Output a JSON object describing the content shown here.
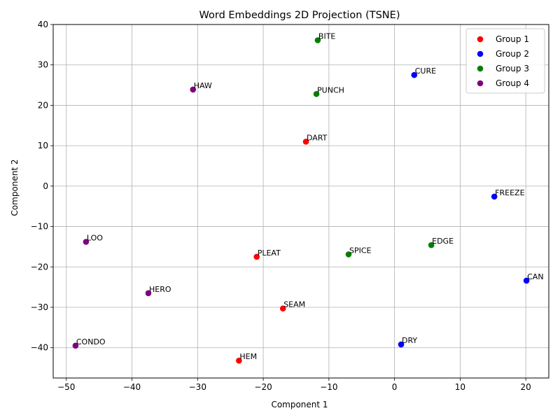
{
  "chart_data": {
    "type": "scatter",
    "title": "Word Embeddings 2D Projection (TSNE)",
    "xlabel": "Component 1",
    "ylabel": "Component 2",
    "xlim": [
      -52,
      23.5
    ],
    "ylim": [
      -47.5,
      40
    ],
    "xticks": [
      -50,
      -40,
      -30,
      -20,
      -10,
      0,
      10,
      20
    ],
    "yticks": [
      -40,
      -30,
      -20,
      -10,
      0,
      10,
      20,
      30,
      40
    ],
    "xtick_labels": [
      "−50",
      "−40",
      "−30",
      "−20",
      "−10",
      "0",
      "10",
      "20"
    ],
    "ytick_labels": [
      "−40",
      "−30",
      "−20",
      "−10",
      "0",
      "10",
      "20",
      "30",
      "40"
    ],
    "grid": true,
    "legend_position": "top-right",
    "series": [
      {
        "name": "Group 1",
        "color": "#ff0000",
        "points": [
          {
            "label": "DART",
            "x": -13.5,
            "y": 11.0
          },
          {
            "label": "PLEAT",
            "x": -21.0,
            "y": -17.5
          },
          {
            "label": "SEAM",
            "x": -17.0,
            "y": -30.3
          },
          {
            "label": "HEM",
            "x": -23.7,
            "y": -43.2
          }
        ]
      },
      {
        "name": "Group 2",
        "color": "#0000ff",
        "points": [
          {
            "label": "CURE",
            "x": 3.0,
            "y": 27.5
          },
          {
            "label": "FREEZE",
            "x": 15.2,
            "y": -2.6
          },
          {
            "label": "CAN",
            "x": 20.1,
            "y": -23.4
          },
          {
            "label": "DRY",
            "x": 1.0,
            "y": -39.2
          }
        ]
      },
      {
        "name": "Group 3",
        "color": "#008000",
        "points": [
          {
            "label": "BITE",
            "x": -11.7,
            "y": 36.1
          },
          {
            "label": "PUNCH",
            "x": -11.9,
            "y": 22.8
          },
          {
            "label": "SPICE",
            "x": -7.0,
            "y": -16.9
          },
          {
            "label": "EDGE",
            "x": 5.6,
            "y": -14.6
          }
        ]
      },
      {
        "name": "Group 4",
        "color": "#800080",
        "points": [
          {
            "label": "HAW",
            "x": -30.7,
            "y": 23.9
          },
          {
            "label": "LOO",
            "x": -47.0,
            "y": -13.8
          },
          {
            "label": "HERO",
            "x": -37.5,
            "y": -26.5
          },
          {
            "label": "CONDO",
            "x": -48.6,
            "y": -39.5
          }
        ]
      }
    ]
  }
}
